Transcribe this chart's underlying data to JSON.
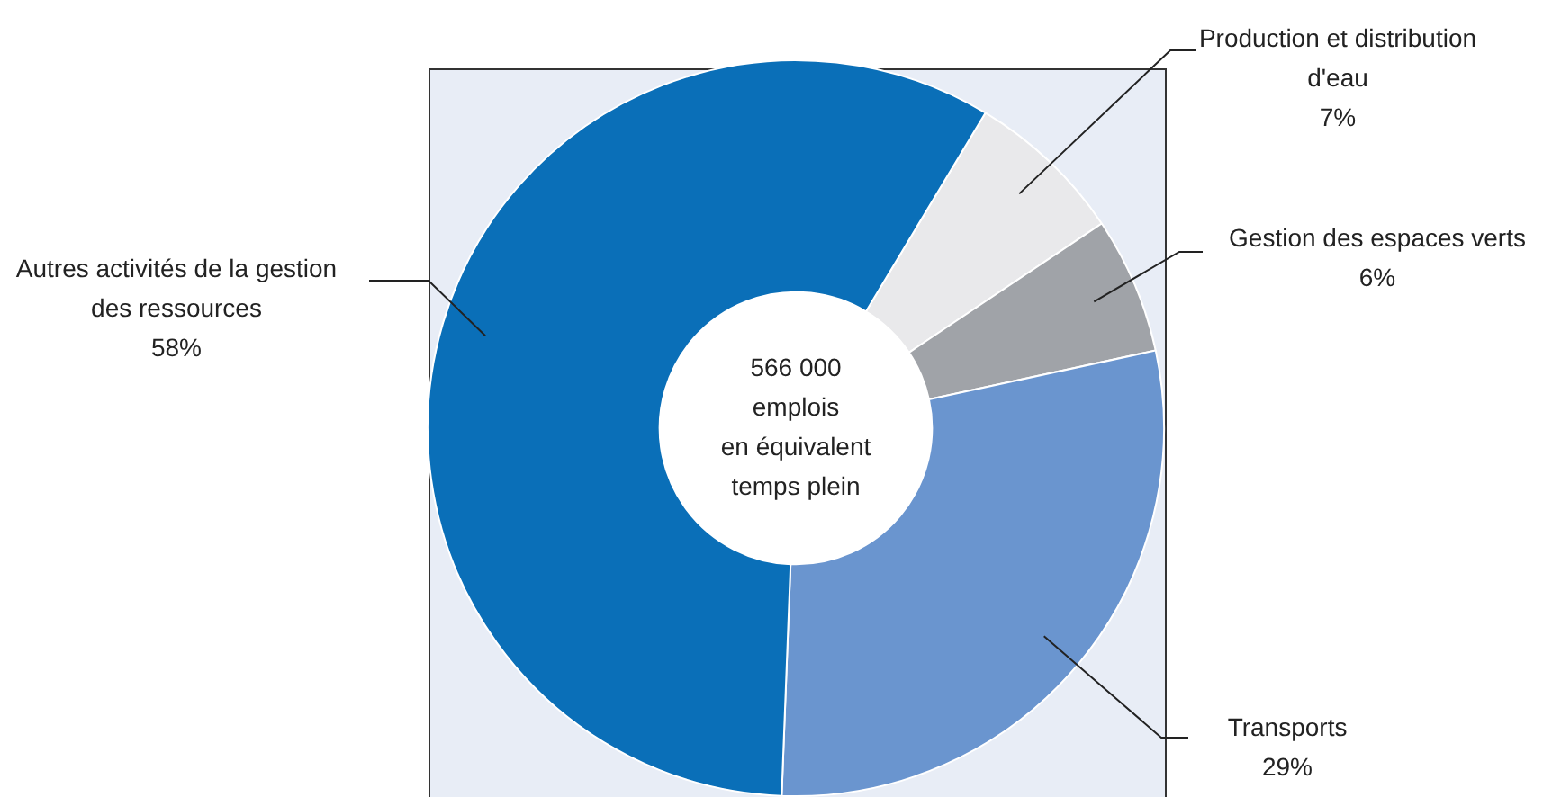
{
  "chart_data": {
    "type": "donut",
    "categories": [
      "Production et distribution d'eau",
      "Gestion des espaces verts",
      "Transports",
      "Autres activités de la gestion des ressources"
    ],
    "values": [
      7,
      6,
      29,
      58
    ],
    "colors": [
      "#e9e9eb",
      "#a0a3a8",
      "#6a95cf",
      "#0a6fb8"
    ],
    "value_labels": [
      "7%",
      "6%",
      "29%",
      "58%"
    ],
    "legend": false,
    "annotations": [
      "566 000\nemplois\nen équivalent\ntemps plein"
    ]
  }
}
